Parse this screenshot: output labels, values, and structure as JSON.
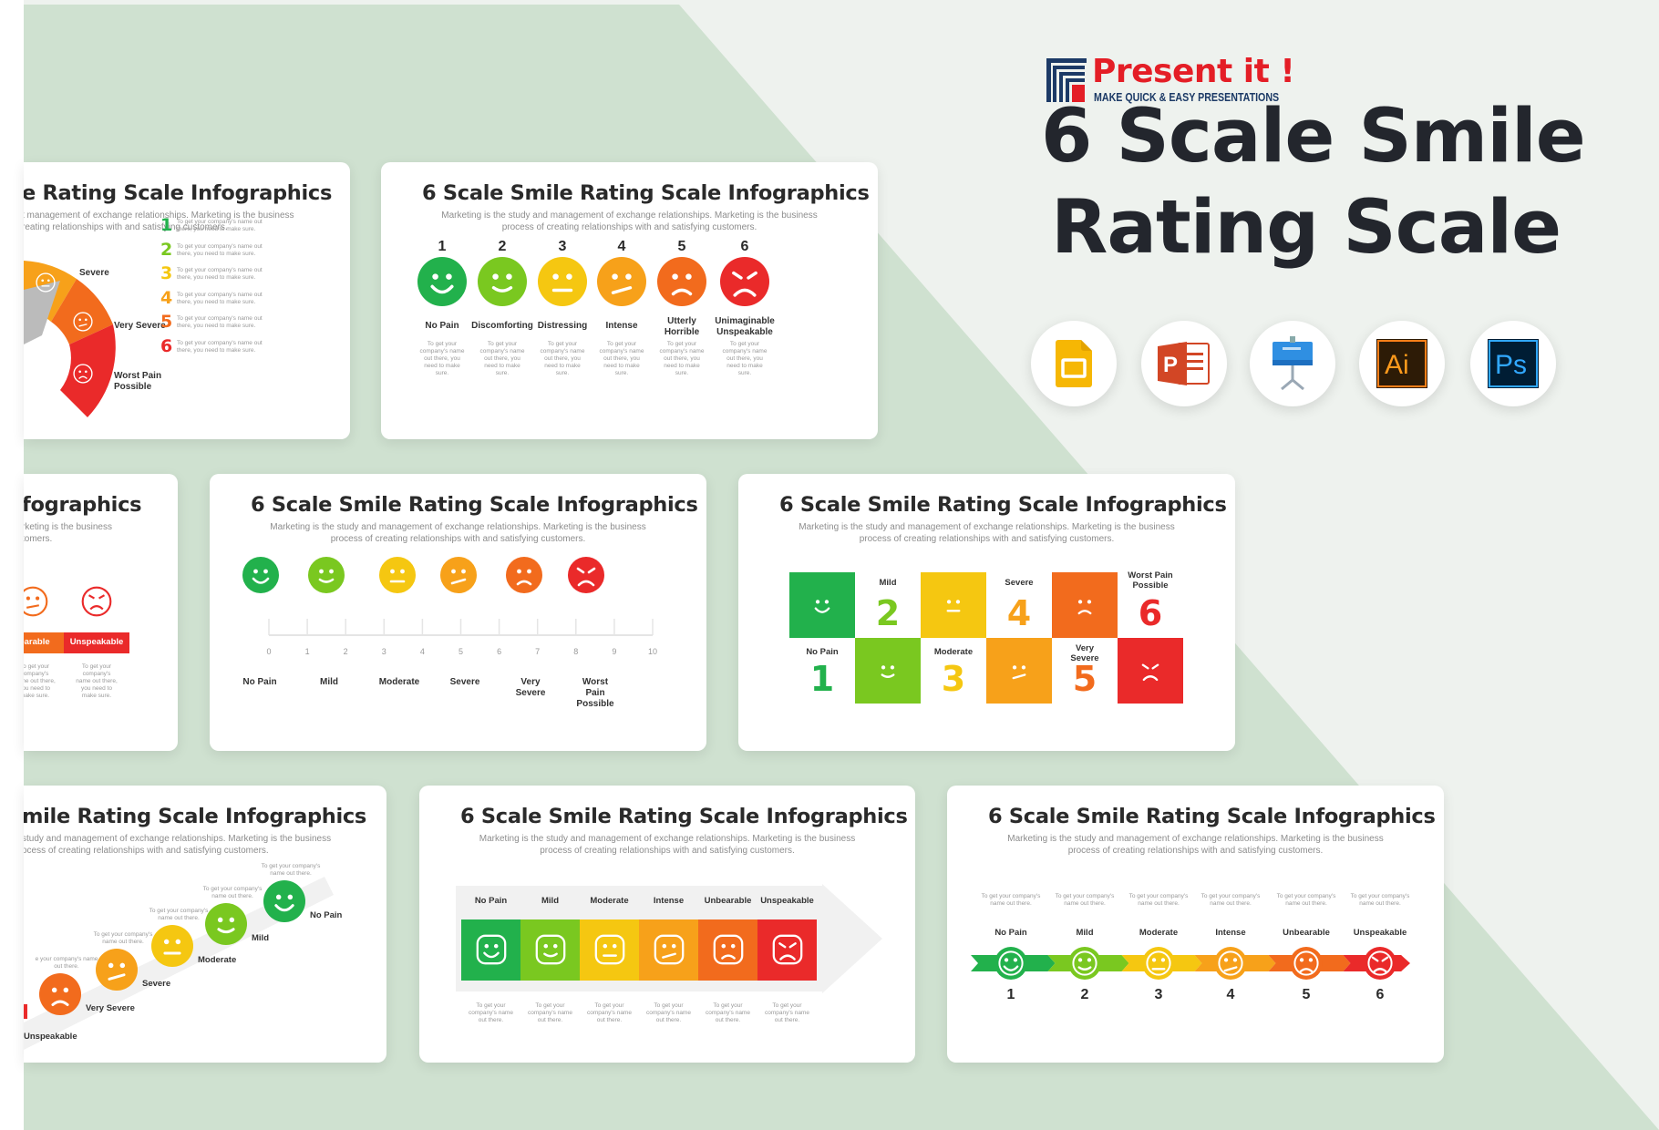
{
  "brand": {
    "name": "Present it !",
    "tagline": "MAKE QUICK & EASY PRESENTATIONS"
  },
  "hero": {
    "title_line1": "6 Scale Smile",
    "title_line2": "Rating Scale"
  },
  "tools": [
    "google-slides-icon",
    "powerpoint-icon",
    "keynote-icon",
    "illustrator-icon",
    "photoshop-icon"
  ],
  "tool_text": {
    "powerpoint": "P",
    "illustrator": "Ai",
    "photoshop": "Ps"
  },
  "colors": {
    "scale": [
      "#22b14c",
      "#7ac820",
      "#f5c711",
      "#f7a11a",
      "#f26b1d",
      "#ea2a2a"
    ],
    "bg_green": "#cfe1d0"
  },
  "slide_title": "6 Scale Smile Rating Scale Infographics",
  "slide_subtitle_l1": "Marketing is the study and management of exchange relationships. Marketing is the business",
  "slide_subtitle_l2": "process of creating relationships with and satisfying customers.",
  "placeholder_text": "To get your company's name out there, you need to make sure.",
  "cards": {
    "gauge": {
      "title": "e Rating Scale Infographics",
      "sub_l1": "t management of exchange relationships. Marketing is the business",
      "sub_l2": "reating relationships with and satisfying customers.",
      "labels": [
        "Severe",
        "Very Severe",
        "Worst Pain",
        "Possible"
      ],
      "items": [
        {
          "n": "1",
          "text": "To get your company's name out there, you need to make sure."
        },
        {
          "n": "2",
          "text": "To get your company's name out there, you need to make sure."
        },
        {
          "n": "3",
          "text": "To get your company's name out there, you need to make sure."
        },
        {
          "n": "4",
          "text": "To get your company's name out there, you need to make sure."
        },
        {
          "n": "5",
          "text": "To get your company's name out there, you need to make sure."
        },
        {
          "n": "6",
          "text": "To get your company's name out there, you need to make sure."
        }
      ]
    },
    "numbered": {
      "numbers": [
        "1",
        "2",
        "3",
        "4",
        "5",
        "6"
      ],
      "labels": [
        "No Pain",
        "Discomforting",
        "Distressing",
        "Intense",
        "Utterly Horrible",
        "Unimaginable Unspeakable"
      ],
      "descs": [
        "To get your company's name out there, you need to make sure.",
        "To get your company's name out there, you need to make sure.",
        "To get your company's name out there, you need to make sure.",
        "To get your company's name out there, you need to make sure.",
        "To get your company's name out there, you need to make sure.",
        "To get your company's name out there, you need to make sure."
      ]
    },
    "partial_left": {
      "title": "fographics",
      "sub_l1": "rketing is the business",
      "sub_l2": "tomers.",
      "bar_labels": [
        "earable",
        "Unspeakable"
      ],
      "descs": [
        "To get your company's name out there, you need to make sure.",
        "To get your company's name out there, you need to make sure."
      ]
    },
    "ruler": {
      "ticks": [
        "0",
        "1",
        "2",
        "3",
        "4",
        "5",
        "6",
        "7",
        "8",
        "9",
        "10"
      ],
      "labels": [
        "No Pain",
        "Mild",
        "Moderate",
        "Severe",
        "Very Severe",
        "Worst Pain Possible"
      ]
    },
    "grid": {
      "top_labels": [
        "Mild",
        "Severe",
        "Worst Pain Possible"
      ],
      "bottom_labels": [
        "No Pain",
        "Moderate",
        "Very Severe"
      ],
      "numbers": [
        "1",
        "2",
        "3",
        "4",
        "5",
        "6"
      ]
    },
    "diagonal": {
      "title": "mile Rating Scale Infographics",
      "sub_l1": "study and management of exchange relationships. Marketing is the business",
      "sub_l2": "ocess of creating relationships with and satisfying customers.",
      "labels": [
        "No Pain",
        "Mild",
        "Moderate",
        "Severe",
        "Very Severe",
        "Unspeakable"
      ],
      "descs": [
        "To get your company's name out there.",
        "To get your company's name out there.",
        "To get your company's name out there.",
        "To get your company's name out there.",
        "e your company's name out there."
      ]
    },
    "arrowbar": {
      "labels": [
        "No Pain",
        "Mild",
        "Moderate",
        "Intense",
        "Unbearable",
        "Unspeakable"
      ],
      "descs": [
        "To get your company's name out there.",
        "To get your company's name out there.",
        "To get your company's name out there.",
        "To get your company's name out there.",
        "To get your company's name out there.",
        "To get your company's name out there."
      ]
    },
    "arrowline": {
      "labels": [
        "No Pain",
        "Mild",
        "Moderate",
        "Intense",
        "Unbearable",
        "Unspeakable"
      ],
      "numbers": [
        "1",
        "2",
        "3",
        "4",
        "5",
        "6"
      ],
      "descs": [
        "To get your company's name out there.",
        "To get your company's name out there.",
        "To get your company's name out there.",
        "To get your company's name out there.",
        "To get your company's name out there.",
        "To get your company's name out there."
      ]
    }
  }
}
